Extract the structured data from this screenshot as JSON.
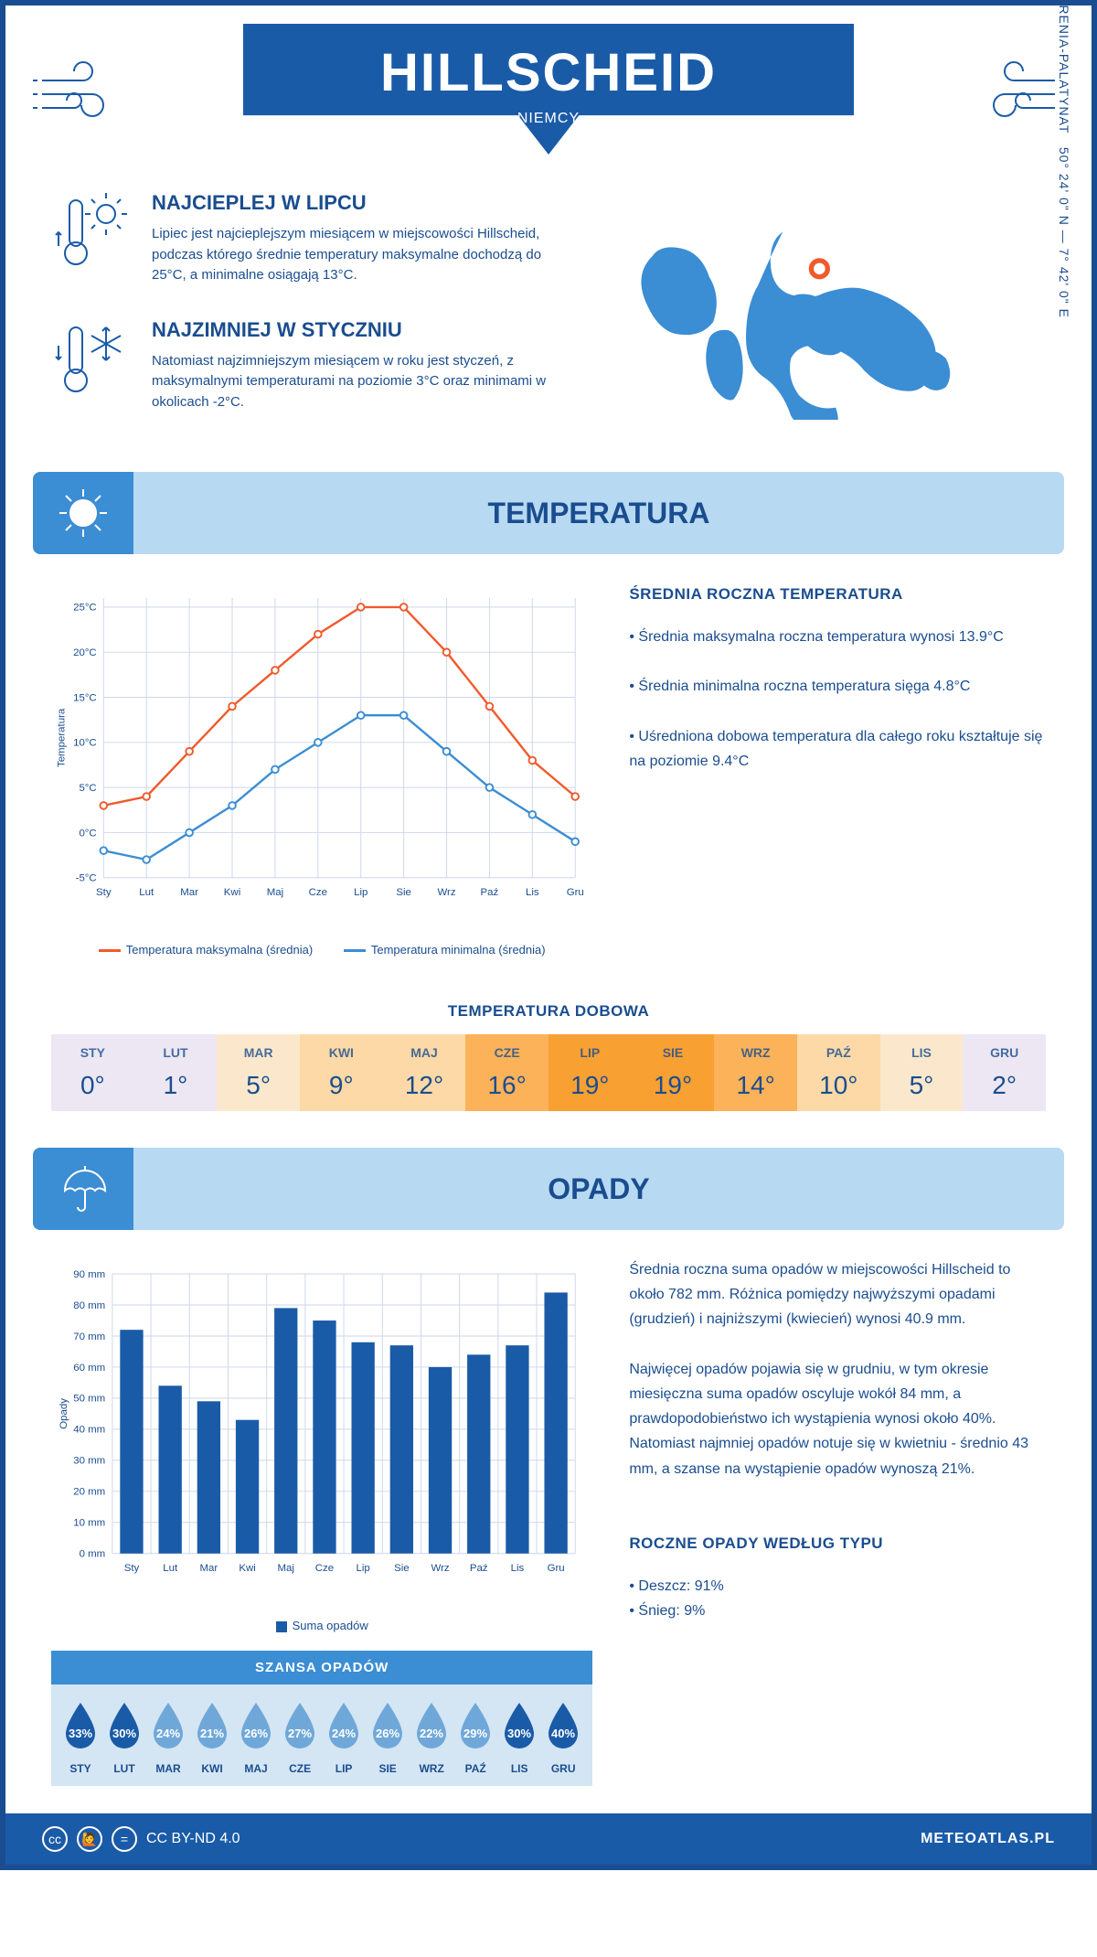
{
  "header": {
    "city": "HILLSCHEID",
    "country": "NIEMCY"
  },
  "coords": "50° 24' 0\" N — 7° 42' 0\" E",
  "region": "NADRENIA-PALATYNAT",
  "facts": [
    {
      "title": "NAJCIEPLEJ W LIPCU",
      "text": "Lipiec jest najcieplejszym miesiącem w miejscowości Hillscheid, podczas którego średnie temperatury maksymalne dochodzą do 25°C, a minimalne osiągają 13°C."
    },
    {
      "title": "NAJZIMNIEJ W STYCZNIU",
      "text": "Natomiast najzimniejszym miesiącem w roku jest styczeń, z maksymalnymi temperaturami na poziomie 3°C oraz minimami w okolicach -2°C."
    }
  ],
  "sections": {
    "temp": "TEMPERATURA",
    "precip": "OPADY"
  },
  "months": [
    "Sty",
    "Lut",
    "Mar",
    "Kwi",
    "Maj",
    "Cze",
    "Lip",
    "Sie",
    "Wrz",
    "Paź",
    "Lis",
    "Gru"
  ],
  "months_upper": [
    "STY",
    "LUT",
    "MAR",
    "KWI",
    "MAJ",
    "CZE",
    "LIP",
    "SIE",
    "WRZ",
    "PAŹ",
    "LIS",
    "GRU"
  ],
  "temp_chart": {
    "type": "line",
    "ylabel": "Temperatura",
    "yticks": [
      -5,
      0,
      5,
      10,
      15,
      20,
      25
    ],
    "ytick_labels": [
      "-5°C",
      "0°C",
      "5°C",
      "10°C",
      "15°C",
      "20°C",
      "25°C"
    ],
    "ylim": [
      -5,
      26
    ],
    "series": [
      {
        "name": "Temperatura maksymalna (średnia)",
        "color": "#f05a2c",
        "values": [
          3,
          4,
          9,
          14,
          18,
          22,
          25,
          25,
          20,
          14,
          8,
          4
        ]
      },
      {
        "name": "Temperatura minimalna (średnia)",
        "color": "#3b8dd4",
        "values": [
          -2,
          -3,
          0,
          3,
          7,
          10,
          13,
          13,
          9,
          5,
          2,
          -1
        ]
      }
    ],
    "grid_color": "#cdd6ea",
    "background": "#ffffff"
  },
  "temp_side": {
    "title": "ŚREDNIA ROCZNA TEMPERATURA",
    "bullets": [
      "Średnia maksymalna roczna temperatura wynosi 13.9°C",
      "Średnia minimalna roczna temperatura sięga 4.8°C",
      "Uśredniona dobowa temperatura dla całego roku kształtuje się na poziomie 9.4°C"
    ]
  },
  "daily": {
    "title": "TEMPERATURA DOBOWA",
    "values": [
      "0°",
      "1°",
      "5°",
      "9°",
      "12°",
      "16°",
      "19°",
      "19°",
      "14°",
      "10°",
      "5°",
      "2°"
    ],
    "colors": [
      "#ece7f2",
      "#ece7f2",
      "#fbe8cc",
      "#fcd9a6",
      "#fcd9a6",
      "#fcb259",
      "#f9a033",
      "#f9a033",
      "#fcb259",
      "#fcd9a6",
      "#fbe8cc",
      "#ece7f2"
    ]
  },
  "precip_chart": {
    "type": "bar",
    "ylabel": "Opady",
    "yticks": [
      0,
      10,
      20,
      30,
      40,
      50,
      60,
      70,
      80,
      90
    ],
    "ytick_labels": [
      "0 mm",
      "10 mm",
      "20 mm",
      "30 mm",
      "40 mm",
      "50 mm",
      "60 mm",
      "70 mm",
      "80 mm",
      "90 mm"
    ],
    "ylim": [
      0,
      90
    ],
    "bar_color": "#1a5ba8",
    "values": [
      72,
      54,
      49,
      43,
      79,
      75,
      68,
      67,
      60,
      64,
      67,
      84
    ],
    "legend": "Suma opadów",
    "grid_color": "#cdd6ea"
  },
  "precip_side": {
    "p1": "Średnia roczna suma opadów w miejscowości Hillscheid to około 782 mm. Różnica pomiędzy najwyższymi opadami (grudzień) i najniższymi (kwiecień) wynosi 40.9 mm.",
    "p2": "Najwięcej opadów pojawia się w grudniu, w tym okresie miesięczna suma opadów oscyluje wokół 84 mm, a prawdopodobieństwo ich wystąpienia wynosi około 40%. Natomiast najmniej opadów notuje się w kwietniu - średnio 43 mm, a szanse na wystąpienie opadów wynoszą 21%.",
    "type_title": "ROCZNE OPADY WEDŁUG TYPU",
    "types": [
      "Deszcz: 91%",
      "Śnieg: 9%"
    ]
  },
  "chance": {
    "title": "SZANSA OPADÓW",
    "values": [
      "33%",
      "30%",
      "24%",
      "21%",
      "26%",
      "27%",
      "24%",
      "26%",
      "22%",
      "29%",
      "30%",
      "40%"
    ],
    "fills": [
      "#1a5ba8",
      "#1a5ba8",
      "#6fa8d8",
      "#6fa8d8",
      "#6fa8d8",
      "#6fa8d8",
      "#6fa8d8",
      "#6fa8d8",
      "#6fa8d8",
      "#6fa8d8",
      "#1a5ba8",
      "#1a5ba8"
    ]
  },
  "footer": {
    "license": "CC BY-ND 4.0",
    "brand": "METEOATLAS.PL"
  }
}
